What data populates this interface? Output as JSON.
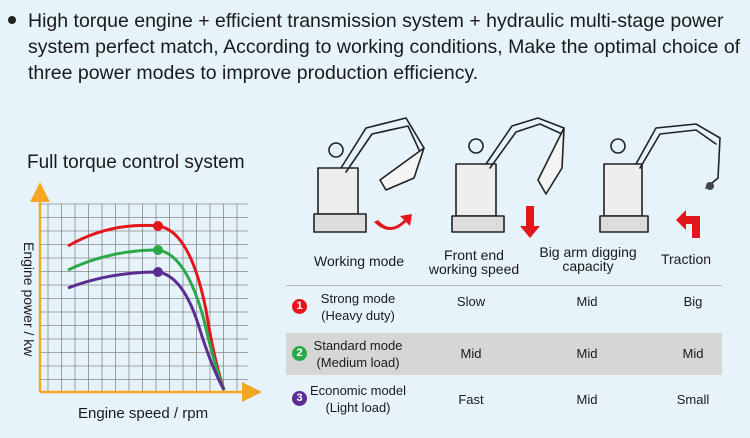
{
  "intro": {
    "text": "High torque engine + efficient transmission system + hydraulic multi-stage power system perfect match, According to working conditions, Make the optimal choice of three power modes to improve production efficiency."
  },
  "chart": {
    "title": "Full torque control system",
    "ylabel": "Engine power / kw",
    "xlabel": "Engine speed / rpm"
  },
  "chart_data": {
    "type": "line",
    "title": "Full torque control system",
    "xlabel": "Engine speed / rpm",
    "ylabel": "Engine power / kw",
    "grid": true,
    "series": [
      {
        "name": "Strong mode",
        "color": "#e3161b"
      },
      {
        "name": "Standard mode",
        "color": "#2aa84a"
      },
      {
        "name": "Economic model",
        "color": "#5b2d91"
      }
    ]
  },
  "illustrations": {
    "arrow_color": "#e3161b",
    "items": [
      "excavator-working-mode-icon",
      "excavator-front-end-speed-icon",
      "excavator-big-arm-digging-icon",
      "excavator-traction-icon"
    ]
  },
  "table": {
    "headers": [
      "Working mode",
      "Front end working speed",
      "Big arm digging capacity",
      "Traction"
    ],
    "headers_lines": [
      [
        "Working mode"
      ],
      [
        "Front end",
        "working speed"
      ],
      [
        "Big arm digging",
        "capacity"
      ],
      [
        "Traction"
      ]
    ],
    "rows": [
      {
        "num": "1",
        "color": "#e3161b",
        "name": "Strong mode",
        "sub": "(Heavy duty)",
        "speed": "Slow",
        "digging": "Mid",
        "traction": "Big"
      },
      {
        "num": "2",
        "color": "#2aa84a",
        "name": "Standard mode",
        "sub": "(Medium load)",
        "speed": "Mid",
        "digging": "Mid",
        "traction": "Mid"
      },
      {
        "num": "3",
        "color": "#5b2d91",
        "name": "Economic model",
        "sub": "(Light load)",
        "speed": "Fast",
        "digging": "Mid",
        "traction": "Small"
      }
    ]
  }
}
